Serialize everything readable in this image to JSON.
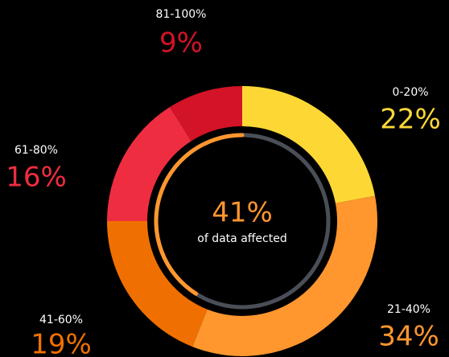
{
  "chart_data": {
    "type": "donut",
    "categories": [
      "0-20%",
      "21-40%",
      "41-60%",
      "61-80%",
      "81-100%"
    ],
    "values": [
      22,
      34,
      19,
      16,
      9
    ],
    "value_labels": [
      "22%",
      "34%",
      "19%",
      "16%",
      "9%"
    ],
    "colors": [
      "#fdd835",
      "#ff962e",
      "#ef7000",
      "#ef2d40",
      "#d31327"
    ],
    "center": {
      "value": 41,
      "label": "41%",
      "text": "of data affected",
      "color": "#ff962e",
      "track_color": "#4a4f57"
    }
  }
}
